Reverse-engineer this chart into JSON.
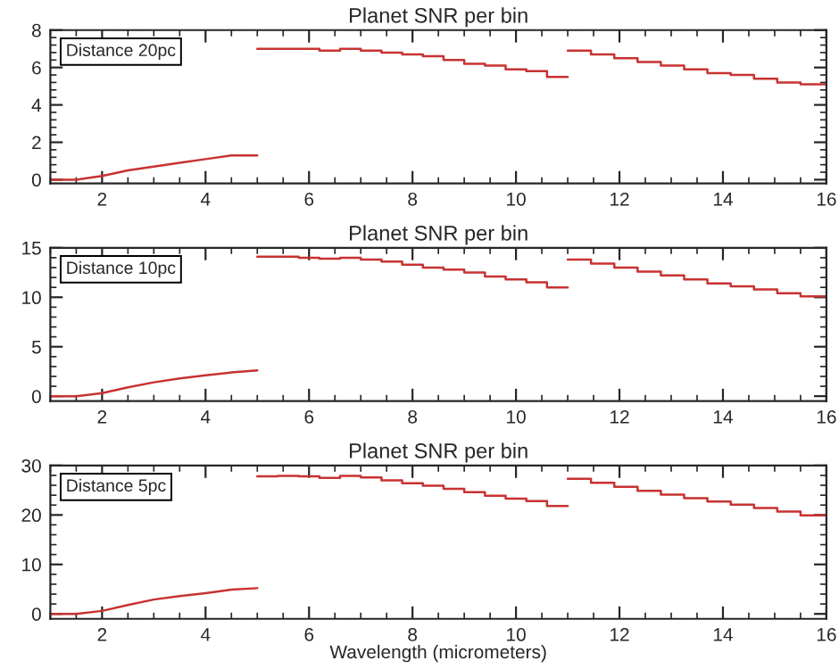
{
  "chart_data": [
    {
      "type": "step",
      "title": "Planet SNR per bin",
      "annotations": [
        "Distance 20pc"
      ],
      "xlim": [
        1,
        16
      ],
      "xticks": [
        2,
        4,
        6,
        8,
        10,
        12,
        14,
        16
      ],
      "ylim": [
        -0.2,
        8
      ],
      "yticks": [
        0,
        2,
        4,
        6,
        8
      ],
      "series": [
        {
          "type": "line",
          "color": "#c83232",
          "x": [
            1,
            1.5,
            2,
            2.5,
            3,
            3.5,
            4,
            4.5,
            5
          ],
          "values": [
            0,
            0,
            0.2,
            0.5,
            0.7,
            0.9,
            1.1,
            1.3,
            1.3
          ]
        },
        {
          "color": "#c83232",
          "x": [
            5,
            5.4,
            5.8,
            6.2,
            6.6,
            7.0,
            7.4,
            7.8,
            8.2,
            8.6,
            9.0,
            9.4,
            9.8,
            10.2,
            10.6,
            11
          ],
          "values": [
            7.0,
            7.0,
            7.0,
            6.9,
            7.0,
            6.9,
            6.8,
            6.7,
            6.6,
            6.4,
            6.2,
            6.1,
            5.9,
            5.8,
            5.5,
            5.5
          ]
        },
        {
          "color": "#c83232",
          "x": [
            11,
            11.45,
            11.9,
            12.35,
            12.8,
            13.25,
            13.7,
            14.15,
            14.6,
            15.05,
            15.5,
            16
          ],
          "values": [
            6.9,
            6.7,
            6.5,
            6.3,
            6.1,
            5.9,
            5.7,
            5.6,
            5.4,
            5.2,
            5.1,
            5.1
          ]
        }
      ]
    },
    {
      "type": "step",
      "title": "Planet SNR per bin",
      "annotations": [
        "Distance 10pc"
      ],
      "xlim": [
        1,
        16
      ],
      "xticks": [
        2,
        4,
        6,
        8,
        10,
        12,
        14,
        16
      ],
      "ylim": [
        -0.5,
        15
      ],
      "yticks": [
        0,
        5,
        10,
        15
      ],
      "series": [
        {
          "type": "line",
          "color": "#c83232",
          "x": [
            1,
            1.5,
            2,
            2.5,
            3,
            3.5,
            4,
            4.5,
            5
          ],
          "values": [
            0,
            0,
            0.3,
            0.9,
            1.4,
            1.8,
            2.1,
            2.4,
            2.6
          ]
        },
        {
          "color": "#c83232",
          "x": [
            5,
            5.4,
            5.8,
            6.2,
            6.6,
            7.0,
            7.4,
            7.8,
            8.2,
            8.6,
            9.0,
            9.4,
            9.8,
            10.2,
            10.6,
            11
          ],
          "values": [
            14.1,
            14.1,
            14.0,
            13.9,
            14.0,
            13.8,
            13.6,
            13.3,
            13.0,
            12.8,
            12.5,
            12.1,
            11.8,
            11.5,
            11.0,
            11.0
          ]
        },
        {
          "color": "#c83232",
          "x": [
            11,
            11.45,
            11.9,
            12.35,
            12.8,
            13.25,
            13.7,
            14.15,
            14.6,
            15.05,
            15.5,
            16
          ],
          "values": [
            13.8,
            13.4,
            13.0,
            12.6,
            12.2,
            11.8,
            11.4,
            11.1,
            10.8,
            10.4,
            10.1,
            10.1
          ]
        }
      ]
    },
    {
      "type": "step",
      "title": "Planet SNR per bin",
      "xlabel": "Wavelength (micrometers)",
      "annotations": [
        "Distance 5pc"
      ],
      "xlim": [
        1,
        16
      ],
      "xticks": [
        2,
        4,
        6,
        8,
        10,
        12,
        14,
        16
      ],
      "ylim": [
        -1,
        30
      ],
      "yticks": [
        0,
        10,
        20,
        30
      ],
      "series": [
        {
          "type": "line",
          "color": "#c83232",
          "x": [
            1,
            1.5,
            2,
            2.5,
            3,
            3.5,
            4,
            4.5,
            5
          ],
          "values": [
            0,
            0,
            0.6,
            1.8,
            2.9,
            3.6,
            4.2,
            4.9,
            5.2
          ]
        },
        {
          "color": "#c83232",
          "x": [
            5,
            5.4,
            5.8,
            6.2,
            6.6,
            7.0,
            7.4,
            7.8,
            8.2,
            8.6,
            9.0,
            9.4,
            9.8,
            10.2,
            10.6,
            11
          ],
          "values": [
            27.8,
            27.9,
            27.8,
            27.5,
            27.9,
            27.6,
            27.0,
            26.4,
            25.9,
            25.3,
            24.6,
            23.9,
            23.3,
            22.8,
            21.8,
            21.8
          ]
        },
        {
          "color": "#c83232",
          "x": [
            11,
            11.45,
            11.9,
            12.35,
            12.8,
            13.25,
            13.7,
            14.15,
            14.6,
            15.05,
            15.5,
            16
          ],
          "values": [
            27.3,
            26.5,
            25.7,
            24.9,
            24.1,
            23.4,
            22.7,
            22.1,
            21.4,
            20.7,
            19.9,
            19.9
          ]
        }
      ]
    }
  ]
}
